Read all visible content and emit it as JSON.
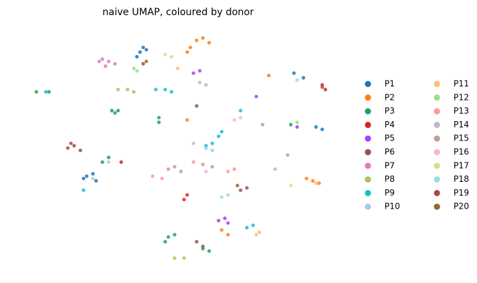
{
  "chart_data": {
    "type": "scatter",
    "title": "naive UMAP, coloured by donor",
    "xlim": [
      0,
      100
    ],
    "ylim": [
      0,
      100
    ],
    "grid": false,
    "legend": "right",
    "series": [
      {
        "name": "P1",
        "color": "#1f77b4",
        "x": [
          38,
          40,
          37,
          39,
          21,
          23,
          20,
          24,
          94,
          96,
          90,
          87
        ],
        "values": [
          91,
          92,
          89,
          93,
          38,
          39,
          37,
          36,
          59,
          58,
          80,
          82
        ]
      },
      {
        "name": "P2",
        "color": "#ff7f0e",
        "x": [
          54,
          56,
          58,
          60,
          53,
          91,
          93,
          95,
          53,
          64,
          66,
          79
        ],
        "values": [
          93,
          96,
          97,
          95,
          91,
          37,
          36,
          35,
          62,
          15,
          13,
          81
        ]
      },
      {
        "name": "P3",
        "color": "#279e68",
        "x": [
          29,
          31,
          30,
          44,
          44,
          47,
          46,
          49,
          58,
          60,
          26,
          28,
          5,
          9,
          86
        ],
        "values": [
          66,
          66,
          65,
          61,
          63,
          12,
          10,
          13,
          7,
          6,
          44,
          46,
          74,
          74,
          60
        ]
      },
      {
        "name": "P4",
        "color": "#d62728",
        "x": [
          53,
          52,
          96,
          97,
          32
        ],
        "values": [
          30,
          28,
          77,
          75,
          44
        ]
      },
      {
        "name": "P5",
        "color": "#aa40fc",
        "x": [
          55,
          57,
          63,
          65,
          66,
          88,
          75
        ],
        "values": [
          82,
          83,
          19,
          20,
          18,
          59,
          72
        ]
      },
      {
        "name": "P6",
        "color": "#8c564b",
        "x": [
          17,
          19,
          56,
          58,
          56,
          39
        ],
        "values": [
          51,
          49,
          10,
          8,
          68,
          86
        ]
      },
      {
        "name": "P7",
        "color": "#e377c2",
        "x": [
          26,
          28,
          27,
          30,
          25
        ],
        "values": [
          88,
          87,
          85,
          86,
          87
        ]
      },
      {
        "name": "P8",
        "color": "#b5bd61",
        "x": [
          31,
          34,
          36,
          49,
          52
        ],
        "values": [
          75,
          75,
          74,
          3,
          3
        ]
      },
      {
        "name": "P9",
        "color": "#17becf",
        "x": [
          43,
          46,
          48,
          64,
          63,
          70,
          72,
          74,
          59,
          61,
          8,
          20
        ],
        "values": [
          75,
          75,
          74,
          57,
          55,
          66,
          16,
          17,
          51,
          52,
          74,
          32
        ]
      },
      {
        "name": "P10",
        "color": "#aec7e8",
        "x": [
          59,
          61,
          28,
          23,
          55
        ],
        "values": [
          50,
          49,
          44,
          37,
          52
        ]
      },
      {
        "name": "P11",
        "color": "#ffbb78",
        "x": [
          50,
          75,
          76,
          94
        ],
        "values": [
          84,
          13,
          14,
          35
        ]
      },
      {
        "name": "P12",
        "color": "#98df8a",
        "x": [
          36,
          37,
          88
        ],
        "values": [
          84,
          83,
          61
        ]
      },
      {
        "name": "P13",
        "color": "#ff9896",
        "x": [
          66,
          68,
          42,
          45,
          55
        ],
        "values": [
          40,
          41,
          38,
          37,
          44
        ]
      },
      {
        "name": "P14",
        "color": "#c5b0d5",
        "x": [
          57,
          59,
          81
        ],
        "values": [
          78,
          77,
          41
        ]
      },
      {
        "name": "P15",
        "color": "#c49c94",
        "x": [
          47,
          49,
          51,
          58,
          61,
          77,
          85
        ],
        "values": [
          41,
          42,
          40,
          43,
          42,
          60,
          47
        ]
      },
      {
        "name": "P16",
        "color": "#f7b6d2",
        "x": [
          68,
          59,
          70
        ],
        "values": [
          62,
          40,
          63
        ]
      },
      {
        "name": "P17",
        "color": "#dbdb8d",
        "x": [
          46,
          48,
          86
        ],
        "values": [
          90,
          89,
          34
        ]
      },
      {
        "name": "P18",
        "color": "#9edae5",
        "x": [
          64,
          66,
          88
        ],
        "values": [
          29,
          30,
          79
        ]
      },
      {
        "name": "P19",
        "color": "#ad494a",
        "x": [
          70,
          72,
          16,
          15,
          96
        ],
        "values": [
          32,
          33,
          52,
          50,
          76
        ]
      },
      {
        "name": "P20",
        "color": "#8c6d31",
        "x": [
          40,
          69
        ],
        "values": [
          87,
          34
        ]
      }
    ]
  }
}
